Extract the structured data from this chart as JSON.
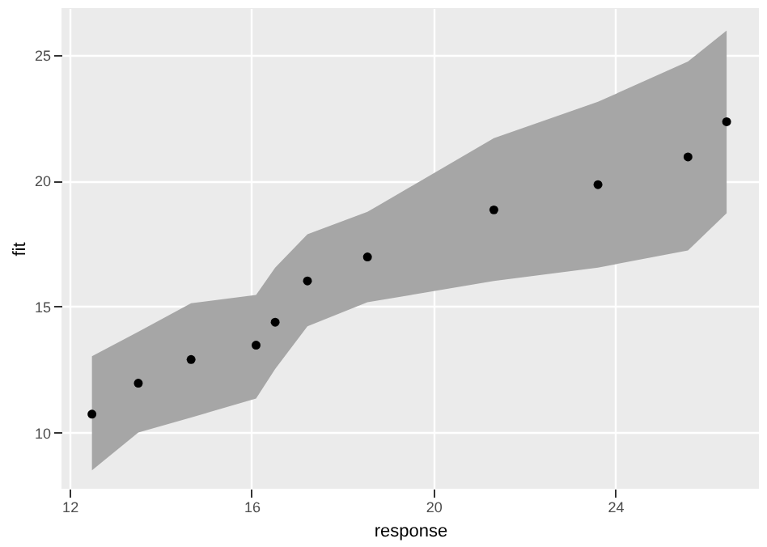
{
  "chart_data": {
    "type": "scatter",
    "xlabel": "response",
    "ylabel": "fit",
    "x": [
      12.49,
      13.51,
      14.67,
      16.1,
      16.52,
      17.23,
      18.55,
      21.33,
      23.62,
      25.6,
      26.45
    ],
    "series": [
      {
        "color": "#000000",
        "values": [
          10.73,
          11.96,
          12.9,
          13.47,
          14.38,
          16.02,
          16.97,
          18.84,
          19.84,
          20.94,
          22.34
        ],
        "lower": [
          8.5,
          10.0,
          10.6,
          11.35,
          12.52,
          14.22,
          15.17,
          16.02,
          16.55,
          17.23,
          18.71
        ],
        "upper": [
          13.03,
          14.0,
          15.13,
          15.46,
          16.55,
          17.87,
          18.76,
          21.69,
          23.13,
          24.73,
          25.96
        ]
      }
    ],
    "xlim": [
      11.82,
      27.16
    ],
    "ylim": [
      7.77,
      26.85
    ],
    "xticks": [
      12,
      16,
      20,
      24
    ],
    "yticks": [
      10,
      15,
      20,
      25
    ],
    "grid": true,
    "marker": "circle"
  }
}
